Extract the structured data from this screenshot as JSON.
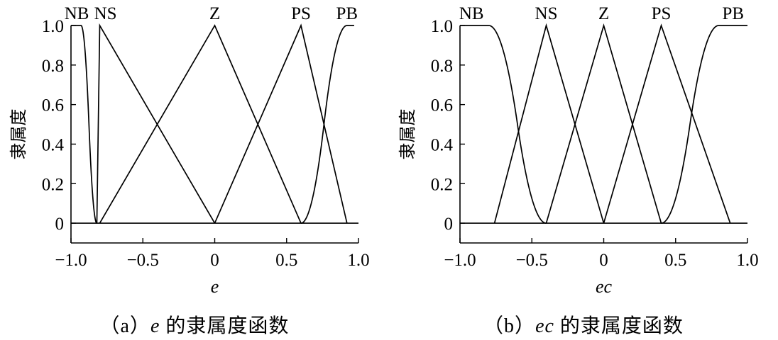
{
  "chart_data": [
    {
      "type": "line",
      "xlabel": "e",
      "ylabel": "隶属度",
      "xlim": [
        -1.0,
        1.0
      ],
      "ylim": [
        -0.1,
        1.0
      ],
      "xticks": [
        -1.0,
        -0.5,
        0,
        0.5,
        1.0
      ],
      "xtick_labels": [
        "−1.0",
        "−0.5",
        "0",
        "0.5",
        "1.0"
      ],
      "yticks": [
        0,
        0.2,
        0.4,
        0.6,
        0.8,
        1.0
      ],
      "ytick_labels": [
        "0",
        "0.2",
        "0.4",
        "0.6",
        "0.8",
        "1.0"
      ],
      "grid": false,
      "caption_prefix": "（a）",
      "caption_var": "e",
      "caption_suffix": " 的隶属度函数",
      "series": [
        {
          "name": "NB",
          "shape": "zmf",
          "params": [
            -0.93,
            -0.82
          ],
          "plateau_from": -1.0,
          "label_x": -0.96
        },
        {
          "name": "NS",
          "shape": "trimf",
          "params": [
            -0.82,
            -0.8,
            0
          ],
          "label_x": -0.76
        },
        {
          "name": "Z",
          "shape": "trimf",
          "params": [
            -0.8,
            0,
            0.6
          ],
          "label_x": 0.0
        },
        {
          "name": "PS",
          "shape": "trimf",
          "params": [
            0,
            0.6,
            0.92
          ],
          "label_x": 0.6
        },
        {
          "name": "PB",
          "shape": "smf",
          "params": [
            0.6,
            0.92
          ],
          "plateau_to": 0.97,
          "label_x": 0.92
        }
      ]
    },
    {
      "type": "line",
      "xlabel": "ec",
      "ylabel": "隶属度",
      "xlim": [
        -1.0,
        1.0
      ],
      "ylim": [
        -0.1,
        1.0
      ],
      "xticks": [
        -1.0,
        -0.5,
        0,
        0.5,
        1.0
      ],
      "xtick_labels": [
        "−1.0",
        "−0.5",
        "0",
        "0.5",
        "1.0"
      ],
      "yticks": [
        0,
        0.2,
        0.4,
        0.6,
        0.8,
        1.0
      ],
      "ytick_labels": [
        "0",
        "0.2",
        "0.4",
        "0.6",
        "0.8",
        "1.0"
      ],
      "grid": false,
      "caption_prefix": "（b）",
      "caption_var": "ec",
      "caption_suffix": " 的隶属度函数",
      "series": [
        {
          "name": "NB",
          "shape": "zmf",
          "params": [
            -0.8,
            -0.4
          ],
          "plateau_from": -1.0,
          "label_x": -0.92
        },
        {
          "name": "NS",
          "shape": "trimf",
          "params": [
            -0.76,
            -0.4,
            0
          ],
          "label_x": -0.4
        },
        {
          "name": "Z",
          "shape": "trimf",
          "params": [
            -0.4,
            0,
            0.4
          ],
          "label_x": 0.0
        },
        {
          "name": "PS",
          "shape": "trimf",
          "params": [
            0,
            0.4,
            0.88
          ],
          "label_x": 0.4
        },
        {
          "name": "PB",
          "shape": "smf",
          "params": [
            0.4,
            0.8
          ],
          "plateau_to": 1.0,
          "label_x": 0.9
        }
      ]
    }
  ]
}
